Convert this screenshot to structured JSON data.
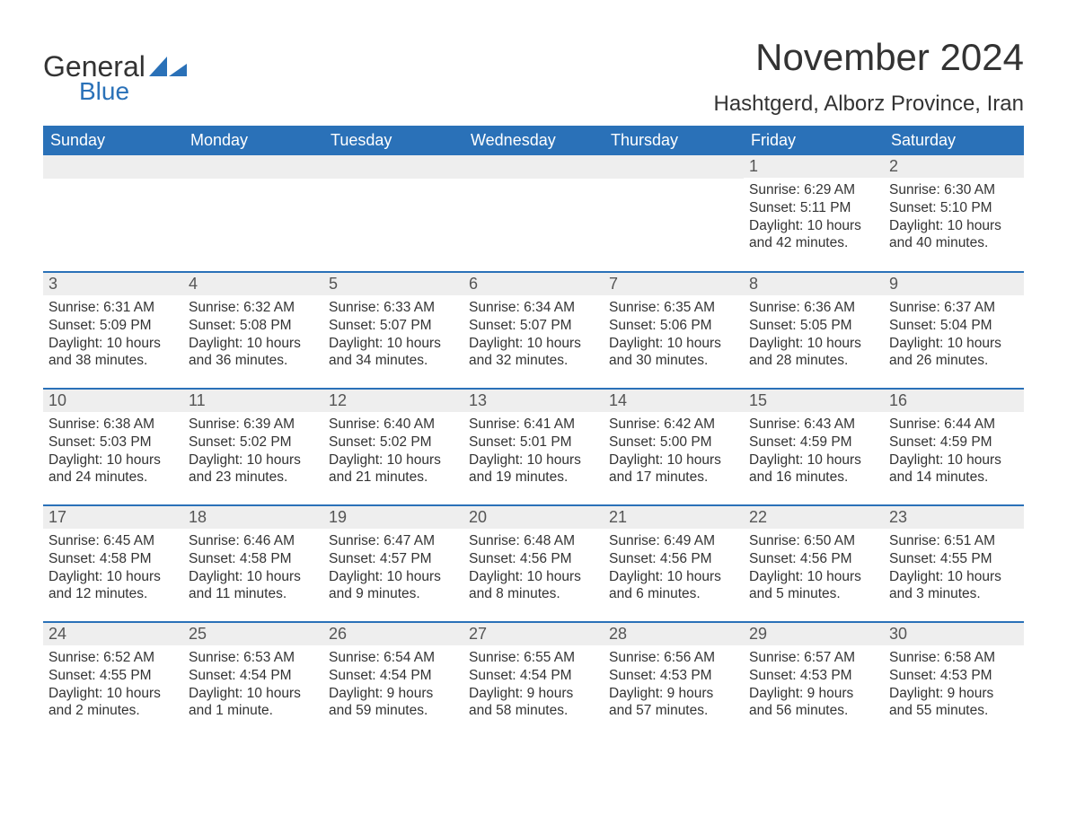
{
  "logo": {
    "word1": "General",
    "word2": "Blue"
  },
  "title": "November 2024",
  "location": "Hashtgerd, Alborz Province, Iran",
  "colors": {
    "headerBg": "#2a71b8",
    "headerText": "#ffffff",
    "dayNumBg": "#eeeeee",
    "rowBorder": "#2a71b8",
    "bodyText": "#333333",
    "logoBlue": "#2a71b8"
  },
  "dayHeaders": [
    "Sunday",
    "Monday",
    "Tuesday",
    "Wednesday",
    "Thursday",
    "Friday",
    "Saturday"
  ],
  "weeks": [
    [
      {
        "blank": true
      },
      {
        "blank": true
      },
      {
        "blank": true
      },
      {
        "blank": true
      },
      {
        "blank": true
      },
      {
        "n": "1",
        "sunrise": "Sunrise: 6:29 AM",
        "sunset": "Sunset: 5:11 PM",
        "day1": "Daylight: 10 hours",
        "day2": "and 42 minutes."
      },
      {
        "n": "2",
        "sunrise": "Sunrise: 6:30 AM",
        "sunset": "Sunset: 5:10 PM",
        "day1": "Daylight: 10 hours",
        "day2": "and 40 minutes."
      }
    ],
    [
      {
        "n": "3",
        "sunrise": "Sunrise: 6:31 AM",
        "sunset": "Sunset: 5:09 PM",
        "day1": "Daylight: 10 hours",
        "day2": "and 38 minutes."
      },
      {
        "n": "4",
        "sunrise": "Sunrise: 6:32 AM",
        "sunset": "Sunset: 5:08 PM",
        "day1": "Daylight: 10 hours",
        "day2": "and 36 minutes."
      },
      {
        "n": "5",
        "sunrise": "Sunrise: 6:33 AM",
        "sunset": "Sunset: 5:07 PM",
        "day1": "Daylight: 10 hours",
        "day2": "and 34 minutes."
      },
      {
        "n": "6",
        "sunrise": "Sunrise: 6:34 AM",
        "sunset": "Sunset: 5:07 PM",
        "day1": "Daylight: 10 hours",
        "day2": "and 32 minutes."
      },
      {
        "n": "7",
        "sunrise": "Sunrise: 6:35 AM",
        "sunset": "Sunset: 5:06 PM",
        "day1": "Daylight: 10 hours",
        "day2": "and 30 minutes."
      },
      {
        "n": "8",
        "sunrise": "Sunrise: 6:36 AM",
        "sunset": "Sunset: 5:05 PM",
        "day1": "Daylight: 10 hours",
        "day2": "and 28 minutes."
      },
      {
        "n": "9",
        "sunrise": "Sunrise: 6:37 AM",
        "sunset": "Sunset: 5:04 PM",
        "day1": "Daylight: 10 hours",
        "day2": "and 26 minutes."
      }
    ],
    [
      {
        "n": "10",
        "sunrise": "Sunrise: 6:38 AM",
        "sunset": "Sunset: 5:03 PM",
        "day1": "Daylight: 10 hours",
        "day2": "and 24 minutes."
      },
      {
        "n": "11",
        "sunrise": "Sunrise: 6:39 AM",
        "sunset": "Sunset: 5:02 PM",
        "day1": "Daylight: 10 hours",
        "day2": "and 23 minutes."
      },
      {
        "n": "12",
        "sunrise": "Sunrise: 6:40 AM",
        "sunset": "Sunset: 5:02 PM",
        "day1": "Daylight: 10 hours",
        "day2": "and 21 minutes."
      },
      {
        "n": "13",
        "sunrise": "Sunrise: 6:41 AM",
        "sunset": "Sunset: 5:01 PM",
        "day1": "Daylight: 10 hours",
        "day2": "and 19 minutes."
      },
      {
        "n": "14",
        "sunrise": "Sunrise: 6:42 AM",
        "sunset": "Sunset: 5:00 PM",
        "day1": "Daylight: 10 hours",
        "day2": "and 17 minutes."
      },
      {
        "n": "15",
        "sunrise": "Sunrise: 6:43 AM",
        "sunset": "Sunset: 4:59 PM",
        "day1": "Daylight: 10 hours",
        "day2": "and 16 minutes."
      },
      {
        "n": "16",
        "sunrise": "Sunrise: 6:44 AM",
        "sunset": "Sunset: 4:59 PM",
        "day1": "Daylight: 10 hours",
        "day2": "and 14 minutes."
      }
    ],
    [
      {
        "n": "17",
        "sunrise": "Sunrise: 6:45 AM",
        "sunset": "Sunset: 4:58 PM",
        "day1": "Daylight: 10 hours",
        "day2": "and 12 minutes."
      },
      {
        "n": "18",
        "sunrise": "Sunrise: 6:46 AM",
        "sunset": "Sunset: 4:58 PM",
        "day1": "Daylight: 10 hours",
        "day2": "and 11 minutes."
      },
      {
        "n": "19",
        "sunrise": "Sunrise: 6:47 AM",
        "sunset": "Sunset: 4:57 PM",
        "day1": "Daylight: 10 hours",
        "day2": "and 9 minutes."
      },
      {
        "n": "20",
        "sunrise": "Sunrise: 6:48 AM",
        "sunset": "Sunset: 4:56 PM",
        "day1": "Daylight: 10 hours",
        "day2": "and 8 minutes."
      },
      {
        "n": "21",
        "sunrise": "Sunrise: 6:49 AM",
        "sunset": "Sunset: 4:56 PM",
        "day1": "Daylight: 10 hours",
        "day2": "and 6 minutes."
      },
      {
        "n": "22",
        "sunrise": "Sunrise: 6:50 AM",
        "sunset": "Sunset: 4:56 PM",
        "day1": "Daylight: 10 hours",
        "day2": "and 5 minutes."
      },
      {
        "n": "23",
        "sunrise": "Sunrise: 6:51 AM",
        "sunset": "Sunset: 4:55 PM",
        "day1": "Daylight: 10 hours",
        "day2": "and 3 minutes."
      }
    ],
    [
      {
        "n": "24",
        "sunrise": "Sunrise: 6:52 AM",
        "sunset": "Sunset: 4:55 PM",
        "day1": "Daylight: 10 hours",
        "day2": "and 2 minutes."
      },
      {
        "n": "25",
        "sunrise": "Sunrise: 6:53 AM",
        "sunset": "Sunset: 4:54 PM",
        "day1": "Daylight: 10 hours",
        "day2": "and 1 minute."
      },
      {
        "n": "26",
        "sunrise": "Sunrise: 6:54 AM",
        "sunset": "Sunset: 4:54 PM",
        "day1": "Daylight: 9 hours",
        "day2": "and 59 minutes."
      },
      {
        "n": "27",
        "sunrise": "Sunrise: 6:55 AM",
        "sunset": "Sunset: 4:54 PM",
        "day1": "Daylight: 9 hours",
        "day2": "and 58 minutes."
      },
      {
        "n": "28",
        "sunrise": "Sunrise: 6:56 AM",
        "sunset": "Sunset: 4:53 PM",
        "day1": "Daylight: 9 hours",
        "day2": "and 57 minutes."
      },
      {
        "n": "29",
        "sunrise": "Sunrise: 6:57 AM",
        "sunset": "Sunset: 4:53 PM",
        "day1": "Daylight: 9 hours",
        "day2": "and 56 minutes."
      },
      {
        "n": "30",
        "sunrise": "Sunrise: 6:58 AM",
        "sunset": "Sunset: 4:53 PM",
        "day1": "Daylight: 9 hours",
        "day2": "and 55 minutes."
      }
    ]
  ]
}
